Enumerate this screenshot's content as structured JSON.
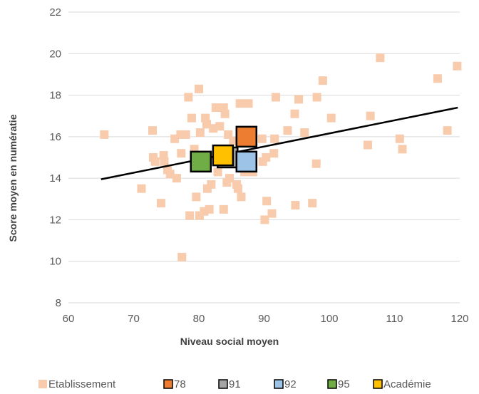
{
  "chart_data": {
    "type": "scatter",
    "title": "",
    "xlabel": "Niveau social moyen",
    "ylabel": "Score moyen en numératie",
    "xlim": [
      60,
      120
    ],
    "ylim": [
      8,
      22
    ],
    "xticks": [
      60,
      70,
      80,
      90,
      100,
      110,
      120
    ],
    "yticks": [
      8,
      10,
      12,
      14,
      16,
      18,
      20,
      22
    ],
    "grid": "horizontal",
    "legend_position": "bottom",
    "trendline": {
      "x": [
        65,
        119.7
      ],
      "y": [
        13.95,
        17.4
      ],
      "color": "#000000"
    },
    "series": [
      {
        "name": "Etablissement",
        "color": "#F8CBAD",
        "marker": "small-square",
        "points": [
          [
            65.5,
            16.1
          ],
          [
            71.2,
            13.5
          ],
          [
            72.9,
            16.3
          ],
          [
            73,
            15.0
          ],
          [
            73.3,
            14.8
          ],
          [
            74.2,
            12.8
          ],
          [
            74.6,
            15.1
          ],
          [
            74.7,
            14.8
          ],
          [
            75.2,
            14.4
          ],
          [
            75.6,
            14.2
          ],
          [
            76.3,
            15.9
          ],
          [
            76.6,
            14.0
          ],
          [
            77.2,
            16.1
          ],
          [
            77.3,
            15.2
          ],
          [
            77.4,
            10.2
          ],
          [
            78,
            16.1
          ],
          [
            78.4,
            17.9
          ],
          [
            78.6,
            12.2
          ],
          [
            78.9,
            16.9
          ],
          [
            79.3,
            15.4
          ],
          [
            79.6,
            13.1
          ],
          [
            80,
            18.3
          ],
          [
            80.1,
            12.2
          ],
          [
            80.2,
            16.2
          ],
          [
            80.6,
            14.6
          ],
          [
            80.8,
            12.4
          ],
          [
            81,
            16.9
          ],
          [
            81.2,
            16.6
          ],
          [
            81.3,
            13.5
          ],
          [
            81.6,
            12.5
          ],
          [
            81.9,
            13.7
          ],
          [
            82.1,
            15.1
          ],
          [
            82.2,
            16.4
          ],
          [
            82.6,
            17.4
          ],
          [
            82.9,
            14.3
          ],
          [
            83.2,
            16.5
          ],
          [
            83.8,
            17.4
          ],
          [
            83.8,
            12.5
          ],
          [
            84,
            17.1
          ],
          [
            84.3,
            13.8
          ],
          [
            84.5,
            16.1
          ],
          [
            84.7,
            14.0
          ],
          [
            85.3,
            15.8
          ],
          [
            85.8,
            13.7
          ],
          [
            86,
            13.5
          ],
          [
            86.3,
            17.6
          ],
          [
            86.5,
            13.1
          ],
          [
            87,
            14.3
          ],
          [
            87.6,
            17.6
          ],
          [
            88.3,
            14.3
          ],
          [
            89.7,
            15.9
          ],
          [
            89.8,
            14.8
          ],
          [
            90.1,
            12.0
          ],
          [
            90.3,
            15.0
          ],
          [
            90.4,
            12.9
          ],
          [
            91.2,
            12.3
          ],
          [
            91.5,
            15.2
          ],
          [
            91.6,
            15.9
          ],
          [
            91.8,
            17.9
          ],
          [
            93.6,
            16.3
          ],
          [
            94.7,
            17.1
          ],
          [
            94.8,
            12.7
          ],
          [
            95.3,
            17.8
          ],
          [
            96.2,
            16.2
          ],
          [
            97.4,
            12.8
          ],
          [
            98,
            14.7
          ],
          [
            98.1,
            17.9
          ],
          [
            99,
            18.7
          ],
          [
            100.3,
            16.9
          ],
          [
            105.9,
            15.6
          ],
          [
            106.3,
            17.0
          ],
          [
            107.8,
            19.8
          ],
          [
            110.8,
            15.9
          ],
          [
            111.2,
            15.4
          ],
          [
            116.6,
            18.8
          ],
          [
            118.1,
            16.3
          ],
          [
            119.6,
            19.4
          ]
        ]
      },
      {
        "name": "78",
        "color": "#ED7D31",
        "marker": "large-square",
        "points": [
          [
            87.3,
            16.0
          ]
        ]
      },
      {
        "name": "91",
        "color": "#A5A5A5",
        "marker": "large-square",
        "points": [
          [
            84.4,
            15.0
          ]
        ]
      },
      {
        "name": "92",
        "color": "#9DC3E6",
        "marker": "large-square",
        "points": [
          [
            87.3,
            14.8
          ]
        ]
      },
      {
        "name": "95",
        "color": "#70AD47",
        "marker": "large-square",
        "points": [
          [
            80.3,
            14.8
          ]
        ]
      },
      {
        "name": "Académie",
        "color": "#FFC000",
        "marker": "large-square",
        "points": [
          [
            83.7,
            15.1
          ]
        ]
      }
    ]
  }
}
